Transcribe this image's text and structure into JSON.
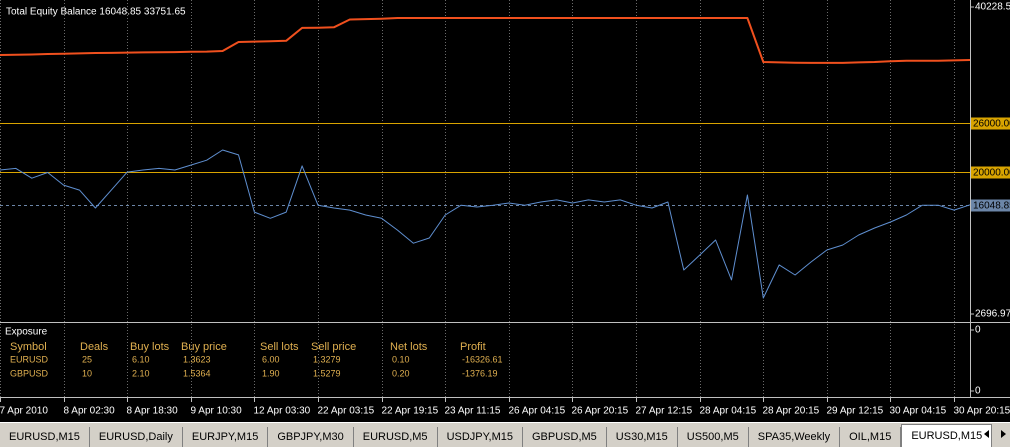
{
  "chart_data": {
    "type": "line",
    "title": "Total Equity Balance 16048.85 33751.65",
    "xlim": [
      0,
      61
    ],
    "xticks": [
      {
        "value": 0,
        "label": "7 Apr 2010"
      },
      {
        "value": 4,
        "label": "8 Apr 02:30"
      },
      {
        "value": 8,
        "label": "8 Apr 18:30"
      },
      {
        "value": 12,
        "label": "9 Apr 10:30"
      },
      {
        "value": 16,
        "label": "12 Apr 03:30"
      },
      {
        "value": 20,
        "label": "22 Apr 03:15"
      },
      {
        "value": 24,
        "label": "22 Apr 19:15"
      },
      {
        "value": 28,
        "label": "23 Apr 11:15"
      },
      {
        "value": 32,
        "label": "26 Apr 04:15"
      },
      {
        "value": 36,
        "label": "26 Apr 20:15"
      },
      {
        "value": 40,
        "label": "27 Apr 12:15"
      },
      {
        "value": 44,
        "label": "28 Apr 04:15"
      },
      {
        "value": 48,
        "label": "28 Apr 20:15"
      },
      {
        "value": 52,
        "label": "29 Apr 12:15"
      },
      {
        "value": 56,
        "label": "30 Apr 04:15"
      },
      {
        "value": 60,
        "label": "30 Apr 20:15"
      }
    ],
    "ylim": [
      2696.97,
      40228.53
    ],
    "yticks": [
      40228.53,
      2696.97
    ],
    "levels": [
      {
        "value": 26000,
        "label": "26000.00",
        "color": "#d9a400"
      },
      {
        "value": 20000,
        "label": "20000.00",
        "color": "#d9a400"
      },
      {
        "value": 16048.85,
        "label": "16048.85",
        "color": "#6c86a8"
      }
    ],
    "series": [
      {
        "color": "#f0501e",
        "values": [
          34360,
          34400,
          34420,
          34480,
          34520,
          34550,
          34600,
          34620,
          34650,
          34680,
          34700,
          34720,
          34750,
          34780,
          34850,
          35950,
          36000,
          36050,
          36100,
          37670,
          37700,
          37750,
          38700,
          38750,
          38800,
          38880,
          38880,
          38880,
          38880,
          38880,
          38880,
          38880,
          38880,
          38880,
          38880,
          38880,
          38880,
          38880,
          38880,
          38880,
          38880,
          38880,
          38880,
          38880,
          38880,
          38880,
          38880,
          38880,
          33500,
          33450,
          33420,
          33400,
          33400,
          33400,
          33450,
          33500,
          33600,
          33650,
          33650,
          33650,
          33700,
          33751.65
        ]
      },
      {
        "color": "#5f8fd0",
        "values": [
          20300,
          20500,
          19300,
          20000,
          18450,
          17850,
          15650,
          17850,
          20050,
          20300,
          20500,
          20300,
          20900,
          21500,
          22750,
          22150,
          15150,
          14400,
          15150,
          20800,
          16000,
          15650,
          15400,
          14800,
          14400,
          12950,
          11350,
          11990,
          14800,
          16000,
          15780,
          16000,
          16270,
          16000,
          16390,
          16640,
          16270,
          16640,
          16390,
          16640,
          16000,
          15650,
          16390,
          8080,
          9900,
          11740,
          6860,
          17250,
          4650,
          8700,
          7470,
          9050,
          10520,
          11130,
          12360,
          13210,
          13950,
          14800,
          16000,
          16000,
          15400,
          16048.85
        ]
      }
    ]
  },
  "exposure": {
    "title": "Exposure",
    "yticks": [
      0,
      0
    ],
    "columns": [
      "Symbol",
      "Deals",
      "Buy lots",
      "Buy price",
      "Sell lots",
      "Sell price",
      "Net lots",
      "Profit"
    ],
    "rows": [
      [
        "EURUSD",
        "25",
        "6.10",
        "1.3623",
        "6.00",
        "1.3279",
        "0.10",
        "-16326.61"
      ],
      [
        "GBPUSD",
        "10",
        "2.10",
        "1.5364",
        "1.90",
        "1.5279",
        "0.20",
        "-1376.19"
      ]
    ]
  },
  "tabs": [
    "EURUSD,M15",
    "EURUSD,Daily",
    "EURJPY,M15",
    "GBPJPY,M30",
    "EURUSD,M5",
    "USDJPY,M15",
    "GBPUSD,M5",
    "US30,M15",
    "US500,M5",
    "SPA35,Weekly",
    "OIL,M15",
    "EURUSD,M15"
  ],
  "active_tab": 11
}
